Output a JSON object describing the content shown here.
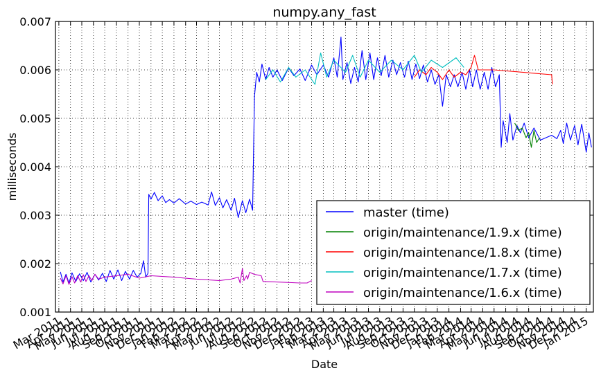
{
  "chart_data": {
    "type": "line",
    "title": "numpy.any_fast",
    "xlabel": "Date",
    "ylabel": "milliseconds",
    "xlim": [
      "2011-02-20",
      "2015-01-20"
    ],
    "ylim": [
      0.001,
      0.007
    ],
    "y_ticks": [
      0.001,
      0.002,
      0.003,
      0.004,
      0.005,
      0.006,
      0.007
    ],
    "y_tick_labels": [
      "0.001",
      "0.002",
      "0.003",
      "0.004",
      "0.005",
      "0.006",
      "0.007"
    ],
    "x_ticks": [
      "2011-03-01",
      "2011-04-01",
      "2011-05-01",
      "2011-06-01",
      "2011-07-01",
      "2011-08-01",
      "2011-09-01",
      "2011-10-01",
      "2011-11-01",
      "2011-12-01",
      "2012-01-01",
      "2012-02-01",
      "2012-03-01",
      "2012-04-01",
      "2012-05-01",
      "2012-06-01",
      "2012-07-01",
      "2012-08-01",
      "2012-09-01",
      "2012-10-01",
      "2012-11-01",
      "2012-12-01",
      "2013-01-01",
      "2013-02-01",
      "2013-03-01",
      "2013-04-01",
      "2013-05-01",
      "2013-06-01",
      "2013-07-01",
      "2013-08-01",
      "2013-09-01",
      "2013-10-01",
      "2013-11-01",
      "2013-12-01",
      "2014-01-01",
      "2014-02-01",
      "2014-03-01",
      "2014-04-01",
      "2014-05-01",
      "2014-06-01",
      "2014-07-01",
      "2014-08-01",
      "2014-09-01",
      "2014-10-01",
      "2014-11-01",
      "2014-12-01",
      "2015-01-01"
    ],
    "x_tick_labels": [
      "Mar 2011",
      "Apr 2011",
      "May 2011",
      "Jun 2011",
      "Jul 2011",
      "Aug 2011",
      "Sep 2011",
      "Oct 2011",
      "Nov 2011",
      "Dec 2011",
      "Jan 2012",
      "Feb 2012",
      "Mar 2012",
      "Apr 2012",
      "May 2012",
      "Jun 2012",
      "Jul 2012",
      "Aug 2012",
      "Sep 2012",
      "Oct 2012",
      "Nov 2012",
      "Dec 2012",
      "Jan 2013",
      "Feb 2013",
      "Mar 2013",
      "Apr 2013",
      "May 2013",
      "Jun 2013",
      "Jul 2013",
      "Aug 2013",
      "Sep 2013",
      "Oct 2013",
      "Nov 2013",
      "Dec 2013",
      "Jan 2014",
      "Feb 2014",
      "Mar 2014",
      "Apr 2014",
      "May 2014",
      "Jun 2014",
      "Jul 2014",
      "Aug 2014",
      "Sep 2014",
      "Oct 2014",
      "Nov 2014",
      "Dec 2014",
      "Jan 2015"
    ],
    "grid": true,
    "legend_position": "lower-right",
    "series": [
      {
        "name": "master (time)",
        "color": "#0000ff",
        "points": [
          [
            "2011-03-05",
            0.00183
          ],
          [
            "2011-03-12",
            0.00162
          ],
          [
            "2011-03-20",
            0.00178
          ],
          [
            "2011-03-28",
            0.0016
          ],
          [
            "2011-04-05",
            0.00181
          ],
          [
            "2011-04-15",
            0.00163
          ],
          [
            "2011-04-25",
            0.00179
          ],
          [
            "2011-05-05",
            0.00165
          ],
          [
            "2011-05-15",
            0.00182
          ],
          [
            "2011-05-25",
            0.00162
          ],
          [
            "2011-06-05",
            0.00178
          ],
          [
            "2011-06-15",
            0.00166
          ],
          [
            "2011-06-25",
            0.0018
          ],
          [
            "2011-07-05",
            0.00163
          ],
          [
            "2011-07-15",
            0.00186
          ],
          [
            "2011-07-25",
            0.00168
          ],
          [
            "2011-08-05",
            0.00187
          ],
          [
            "2011-08-15",
            0.00165
          ],
          [
            "2011-08-25",
            0.00184
          ],
          [
            "2011-09-05",
            0.00168
          ],
          [
            "2011-09-15",
            0.00186
          ],
          [
            "2011-09-25",
            0.00172
          ],
          [
            "2011-10-05",
            0.0018
          ],
          [
            "2011-10-12",
            0.00206
          ],
          [
            "2011-10-18",
            0.00172
          ],
          [
            "2011-10-24",
            0.0018
          ],
          [
            "2011-10-26",
            0.00343
          ],
          [
            "2011-11-01",
            0.00333
          ],
          [
            "2011-11-10",
            0.00347
          ],
          [
            "2011-11-20",
            0.0033
          ],
          [
            "2011-12-01",
            0.0034
          ],
          [
            "2011-12-10",
            0.00326
          ],
          [
            "2011-12-20",
            0.00332
          ],
          [
            "2012-01-01",
            0.00325
          ],
          [
            "2012-01-15",
            0.00334
          ],
          [
            "2012-02-01",
            0.00323
          ],
          [
            "2012-02-15",
            0.00329
          ],
          [
            "2012-03-01",
            0.00322
          ],
          [
            "2012-03-15",
            0.00327
          ],
          [
            "2012-04-01",
            0.00321
          ],
          [
            "2012-04-10",
            0.00348
          ],
          [
            "2012-04-20",
            0.0032
          ],
          [
            "2012-05-01",
            0.00336
          ],
          [
            "2012-05-10",
            0.00315
          ],
          [
            "2012-05-20",
            0.00332
          ],
          [
            "2012-06-01",
            0.0031
          ],
          [
            "2012-06-10",
            0.00335
          ],
          [
            "2012-06-20",
            0.00295
          ],
          [
            "2012-07-01",
            0.0033
          ],
          [
            "2012-07-10",
            0.00305
          ],
          [
            "2012-07-20",
            0.00333
          ],
          [
            "2012-07-28",
            0.0031
          ],
          [
            "2012-08-02",
            0.00545
          ],
          [
            "2012-08-08",
            0.00595
          ],
          [
            "2012-08-15",
            0.00575
          ],
          [
            "2012-08-22",
            0.00612
          ],
          [
            "2012-09-01",
            0.0058
          ],
          [
            "2012-09-10",
            0.00605
          ],
          [
            "2012-09-20",
            0.00585
          ],
          [
            "2012-10-01",
            0.006
          ],
          [
            "2012-10-15",
            0.00578
          ],
          [
            "2012-11-01",
            0.00604
          ],
          [
            "2012-11-15",
            0.00588
          ],
          [
            "2012-12-01",
            0.00602
          ],
          [
            "2012-12-15",
            0.00578
          ],
          [
            "2013-01-01",
            0.0061
          ],
          [
            "2013-01-15",
            0.0059
          ],
          [
            "2013-02-01",
            0.0061
          ],
          [
            "2013-02-15",
            0.00585
          ],
          [
            "2013-03-01",
            0.00625
          ],
          [
            "2013-03-10",
            0.00585
          ],
          [
            "2013-03-20",
            0.00668
          ],
          [
            "2013-03-25",
            0.0058
          ],
          [
            "2013-04-05",
            0.00615
          ],
          [
            "2013-04-15",
            0.00572
          ],
          [
            "2013-04-25",
            0.00605
          ],
          [
            "2013-05-05",
            0.00575
          ],
          [
            "2013-05-15",
            0.0064
          ],
          [
            "2013-05-25",
            0.0058
          ],
          [
            "2013-06-05",
            0.00635
          ],
          [
            "2013-06-15",
            0.0058
          ],
          [
            "2013-06-25",
            0.00625
          ],
          [
            "2013-07-05",
            0.00588
          ],
          [
            "2013-07-15",
            0.0063
          ],
          [
            "2013-07-25",
            0.00585
          ],
          [
            "2013-08-05",
            0.0062
          ],
          [
            "2013-08-15",
            0.0059
          ],
          [
            "2013-08-25",
            0.00615
          ],
          [
            "2013-09-05",
            0.00585
          ],
          [
            "2013-09-15",
            0.00618
          ],
          [
            "2013-09-25",
            0.0058
          ],
          [
            "2013-10-05",
            0.00612
          ],
          [
            "2013-10-15",
            0.00582
          ],
          [
            "2013-10-25",
            0.0061
          ],
          [
            "2013-11-05",
            0.00575
          ],
          [
            "2013-11-15",
            0.006
          ],
          [
            "2013-11-25",
            0.0057
          ],
          [
            "2013-12-05",
            0.0059
          ],
          [
            "2013-12-15",
            0.00525
          ],
          [
            "2013-12-25",
            0.0059
          ],
          [
            "2014-01-05",
            0.00565
          ],
          [
            "2014-01-15",
            0.0059
          ],
          [
            "2014-01-25",
            0.00565
          ],
          [
            "2014-02-05",
            0.00595
          ],
          [
            "2014-02-15",
            0.0056
          ],
          [
            "2014-02-25",
            0.006
          ],
          [
            "2014-03-05",
            0.00565
          ],
          [
            "2014-03-15",
            0.006
          ],
          [
            "2014-03-25",
            0.0056
          ],
          [
            "2014-04-05",
            0.00595
          ],
          [
            "2014-04-15",
            0.0056
          ],
          [
            "2014-04-25",
            0.00605
          ],
          [
            "2014-05-05",
            0.00565
          ],
          [
            "2014-05-15",
            0.0059
          ],
          [
            "2014-05-20",
            0.0044
          ],
          [
            "2014-05-25",
            0.00495
          ],
          [
            "2014-06-05",
            0.0045
          ],
          [
            "2014-06-12",
            0.0051
          ],
          [
            "2014-06-20",
            0.00455
          ],
          [
            "2014-07-01",
            0.00485
          ],
          [
            "2014-07-10",
            0.0047
          ],
          [
            "2014-07-20",
            0.0049
          ],
          [
            "2014-08-01",
            0.0046
          ],
          [
            "2014-08-15",
            0.0048
          ],
          [
            "2014-09-01",
            0.00455
          ],
          [
            "2014-10-01",
            0.00465
          ],
          [
            "2014-10-15",
            0.00458
          ],
          [
            "2014-10-25",
            0.00475
          ],
          [
            "2014-11-01",
            0.00448
          ],
          [
            "2014-11-10",
            0.0049
          ],
          [
            "2014-11-20",
            0.00455
          ],
          [
            "2014-12-01",
            0.00485
          ],
          [
            "2014-12-10",
            0.00445
          ],
          [
            "2014-12-20",
            0.00488
          ],
          [
            "2015-01-01",
            0.0043
          ],
          [
            "2015-01-08",
            0.0047
          ],
          [
            "2015-01-15",
            0.0044
          ]
        ]
      },
      {
        "name": "origin/maintenance/1.9.x (time)",
        "color": "#008000",
        "points": [
          [
            "2014-06-25",
            0.0049
          ],
          [
            "2014-07-05",
            0.00475
          ],
          [
            "2014-07-15",
            0.0048
          ],
          [
            "2014-07-25",
            0.0046
          ],
          [
            "2014-08-01",
            0.0047
          ],
          [
            "2014-08-08",
            0.0044
          ],
          [
            "2014-08-15",
            0.00475
          ],
          [
            "2014-08-22",
            0.0045
          ],
          [
            "2014-08-30",
            0.0046
          ]
        ]
      },
      {
        "name": "origin/maintenance/1.8.x (time)",
        "color": "#ff0000",
        "points": [
          [
            "2013-10-01",
            0.00585
          ],
          [
            "2013-10-15",
            0.006
          ],
          [
            "2013-11-01",
            0.0059
          ],
          [
            "2013-11-15",
            0.00605
          ],
          [
            "2013-12-01",
            0.00595
          ],
          [
            "2013-12-15",
            0.0058
          ],
          [
            "2014-01-01",
            0.006
          ],
          [
            "2014-01-15",
            0.00585
          ],
          [
            "2014-02-01",
            0.00595
          ],
          [
            "2014-02-15",
            0.0059
          ],
          [
            "2014-03-01",
            0.00605
          ],
          [
            "2014-03-10",
            0.0063
          ],
          [
            "2014-03-20",
            0.006
          ],
          [
            "2014-05-01",
            0.006
          ],
          [
            "2014-10-01",
            0.0059
          ],
          [
            "2014-10-03",
            0.0057
          ]
        ]
      },
      {
        "name": "origin/maintenance/1.7.x (time)",
        "color": "#00bfbf",
        "points": [
          [
            "2012-09-01",
            0.0058
          ],
          [
            "2012-09-20",
            0.006
          ],
          [
            "2012-10-10",
            0.00575
          ],
          [
            "2012-11-01",
            0.00605
          ],
          [
            "2012-11-20",
            0.00585
          ],
          [
            "2012-12-15",
            0.006
          ],
          [
            "2013-01-10",
            0.0057
          ],
          [
            "2013-01-25",
            0.00635
          ],
          [
            "2013-02-10",
            0.00585
          ],
          [
            "2013-03-01",
            0.0062
          ],
          [
            "2013-04-01",
            0.00595
          ],
          [
            "2013-04-20",
            0.0063
          ],
          [
            "2013-05-10",
            0.00585
          ],
          [
            "2013-06-01",
            0.0062
          ],
          [
            "2013-07-01",
            0.00595
          ],
          [
            "2013-08-01",
            0.0062
          ],
          [
            "2013-09-01",
            0.006
          ],
          [
            "2013-10-01",
            0.0063
          ],
          [
            "2013-10-20",
            0.00595
          ],
          [
            "2013-11-15",
            0.0062
          ],
          [
            "2013-12-15",
            0.00605
          ],
          [
            "2014-01-20",
            0.00625
          ],
          [
            "2014-02-10",
            0.00605
          ]
        ]
      },
      {
        "name": "origin/maintenance/1.6.x (time)",
        "color": "#bf00bf",
        "points": [
          [
            "2011-03-05",
            0.0017
          ],
          [
            "2011-03-12",
            0.00158
          ],
          [
            "2011-03-20",
            0.00175
          ],
          [
            "2011-03-28",
            0.00157
          ],
          [
            "2011-04-05",
            0.00173
          ],
          [
            "2011-04-12",
            0.0016
          ],
          [
            "2011-04-20",
            0.00175
          ],
          [
            "2011-04-28",
            0.00162
          ],
          [
            "2011-05-05",
            0.00177
          ],
          [
            "2011-05-12",
            0.00163
          ],
          [
            "2011-05-20",
            0.00175
          ],
          [
            "2011-05-28",
            0.00165
          ],
          [
            "2011-06-05",
            0.00178
          ],
          [
            "2011-06-15",
            0.00168
          ],
          [
            "2011-07-01",
            0.00172
          ],
          [
            "2011-08-01",
            0.00175
          ],
          [
            "2011-09-01",
            0.00178
          ],
          [
            "2011-10-01",
            0.0017
          ],
          [
            "2011-11-01",
            0.00175
          ],
          [
            "2012-01-01",
            0.00172
          ],
          [
            "2012-03-01",
            0.00168
          ],
          [
            "2012-05-01",
            0.00165
          ],
          [
            "2012-06-01",
            0.00168
          ],
          [
            "2012-06-20",
            0.00172
          ],
          [
            "2012-06-25",
            0.0016
          ],
          [
            "2012-07-01",
            0.0019
          ],
          [
            "2012-07-05",
            0.00165
          ],
          [
            "2012-07-12",
            0.00175
          ],
          [
            "2012-07-15",
            0.00168
          ],
          [
            "2012-07-20",
            0.00182
          ],
          [
            "2012-08-01",
            0.00178
          ],
          [
            "2012-08-20",
            0.00175
          ],
          [
            "2012-08-25",
            0.00163
          ],
          [
            "2012-10-01",
            0.00162
          ],
          [
            "2012-12-01",
            0.0016
          ],
          [
            "2012-12-20",
            0.0016
          ],
          [
            "2013-01-01",
            0.00165
          ]
        ]
      }
    ]
  }
}
